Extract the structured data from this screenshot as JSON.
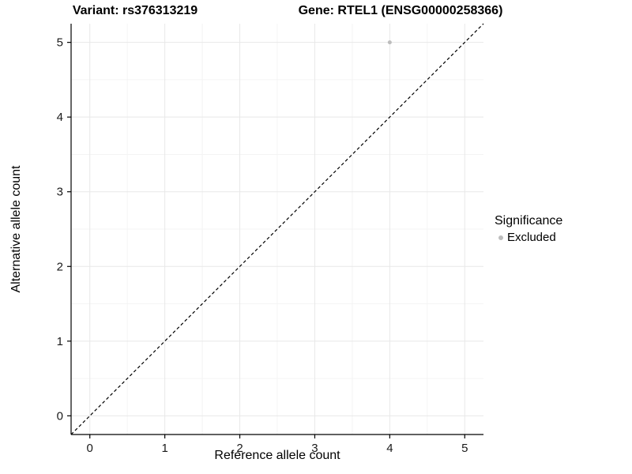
{
  "titles": {
    "variant": "Variant: rs376313219",
    "gene": "Gene: RTEL1 (ENSG00000258366)"
  },
  "chart_data": {
    "type": "scatter",
    "title": "Variant: rs376313219 / Gene: RTEL1 (ENSG00000258366)",
    "xlabel": "Reference allele count",
    "ylabel": "Alternative allele count",
    "xlim": [
      -0.25,
      5.25
    ],
    "ylim": [
      -0.25,
      5.25
    ],
    "xticks": [
      0,
      1,
      2,
      3,
      4,
      5
    ],
    "yticks": [
      0,
      1,
      2,
      3,
      4,
      5
    ],
    "minor_ticks": [
      0.5,
      1.5,
      2.5,
      3.5,
      4.5
    ],
    "grid": true,
    "points": [
      {
        "x": 4,
        "y": 5,
        "series": "Excluded"
      }
    ],
    "reference_line": {
      "type": "identity",
      "equation": "y = x",
      "style": "dashed",
      "color": "#000000"
    },
    "legend": {
      "title": "Significance",
      "position": "right",
      "items": [
        {
          "label": "Excluded",
          "color": "#bdbdbd"
        }
      ]
    },
    "colors": {
      "point": "#bdbdbd",
      "grid_major": "#e8e8e8",
      "grid_minor": "#f4f4f4",
      "axis": "#000000",
      "tick_label": "#1a1a1a"
    }
  }
}
